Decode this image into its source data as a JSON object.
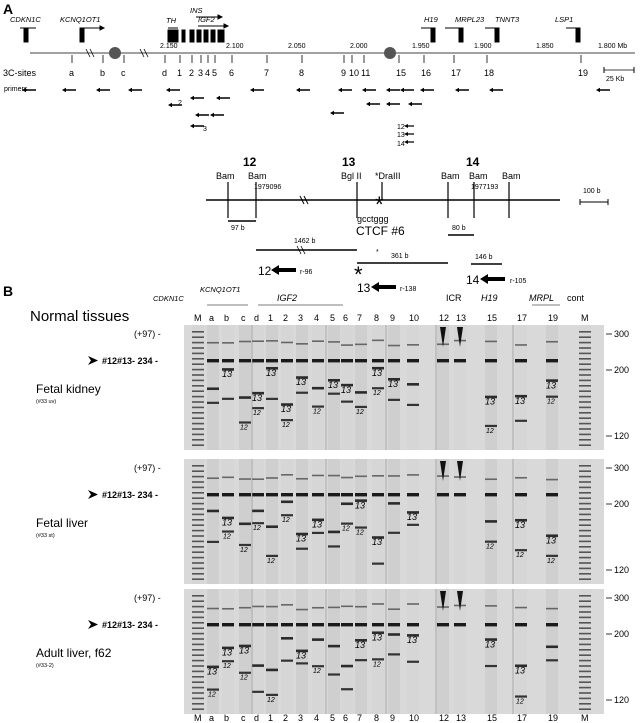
{
  "panel_a": {
    "letter": "A",
    "genes_top": [
      "CDKN1C",
      "KCNQ1OT1",
      "TH",
      "INS",
      "IGF2",
      "H19",
      "MRPL23",
      "TNNT3",
      "LSP1"
    ],
    "scale_ticks": [
      "2.150",
      "2.100",
      "2.050",
      "2.000",
      "1.950",
      "1.900",
      "1.850",
      "1.800 Mb"
    ],
    "row_label_sites": "3C-sites",
    "row_label_primers": "primers",
    "sites": [
      "a",
      "b",
      "c",
      "d",
      "1",
      "2",
      "3",
      "4",
      "5",
      "6",
      "7",
      "8",
      "9",
      "10",
      "11",
      "15",
      "16",
      "17",
      "18",
      "19"
    ],
    "primer_labels": [
      "2",
      "3",
      "12",
      "13",
      "14"
    ],
    "scale_bar": "25 Kb",
    "detail": {
      "fragment_labels": [
        "12",
        "13",
        "14"
      ],
      "sites": [
        "Bam",
        "Bam",
        "Bgl II",
        "*DraIII",
        "Bam",
        "Bam",
        "Bam"
      ],
      "coord_left": "1979096",
      "coord_right": "1977193",
      "scale": "100 b",
      "motif": "gcctggg",
      "ctcf": "CTCF #6",
      "sizes": [
        "97 b",
        "1462 b",
        "361 b",
        "80 b",
        "146 b"
      ],
      "primers": [
        {
          "num": "12",
          "name": "r-96"
        },
        {
          "num": "13",
          "name": "r-138"
        },
        {
          "num": "14",
          "name": "r-105"
        }
      ]
    }
  },
  "panel_b": {
    "letter": "B",
    "title": "Normal tissues",
    "header_genes": [
      "CDKN1C",
      "KCNQ1OT1",
      "IGF2",
      "ICR",
      "H19",
      "MRPL",
      "cont"
    ],
    "lanes": [
      "M",
      "a",
      "b",
      "c",
      "d",
      "1",
      "2",
      "3",
      "4",
      "5",
      "6",
      "7",
      "8",
      "9",
      "10",
      "12",
      "13",
      "15",
      "17",
      "19",
      "M"
    ],
    "marker_sizes": [
      "300",
      "200",
      "120"
    ],
    "band_plus": "(+97) -",
    "band_main": "#12#13- 234 -",
    "gels": [
      {
        "tissue": "Fetal kidney",
        "sample": "(#33 uv)"
      },
      {
        "tissue": "Fetal liver",
        "sample": "(#33 st)"
      },
      {
        "tissue": "Adult liver, f62",
        "sample": "(#33-2)"
      }
    ],
    "bottom_lanes": [
      "M",
      "a",
      "b",
      "c",
      "d",
      "1",
      "2",
      "3",
      "4",
      "5",
      "6",
      "7",
      "8",
      "9",
      "10",
      "12",
      "13",
      "15",
      "17",
      "19",
      "M"
    ]
  }
}
